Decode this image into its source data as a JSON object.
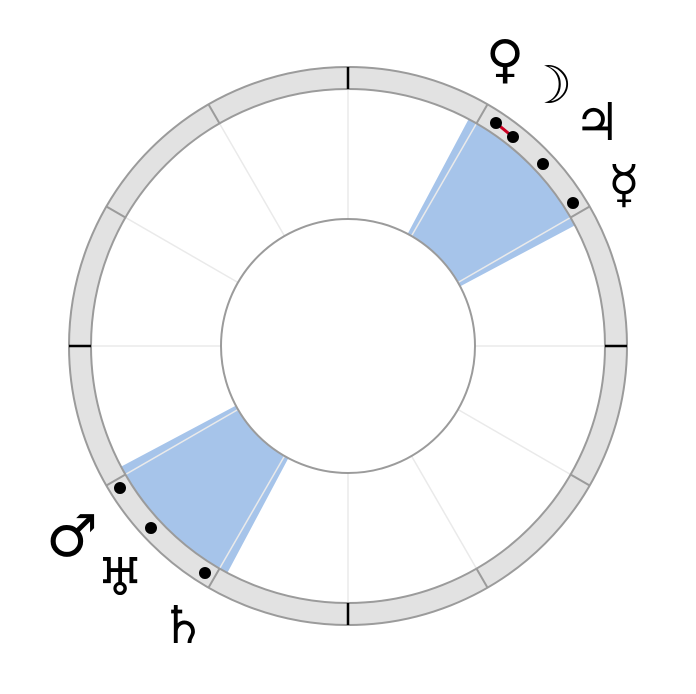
{
  "chart": {
    "colors": {
      "background": "#ffffff",
      "ring_fill": "#e2e2e2",
      "ring_stroke": "#9b9b9b",
      "inner_circle_stroke": "#9b9b9b",
      "division_line": "#eaeaea",
      "cardinal_tick": "#000000",
      "highlight_sector": "#a6c4ea",
      "planet_dot": "#000000",
      "aspect_line": "#cc0022",
      "glyph": "#000000"
    },
    "ring_divisions_count": 12,
    "cardinal_directions": [
      "top",
      "right",
      "bottom",
      "left"
    ],
    "highlighted_sectors": [
      {
        "id": "upper-right",
        "direction": "upper-right"
      },
      {
        "id": "lower-left",
        "direction": "lower-left"
      }
    ],
    "planets": [
      {
        "name": "venus",
        "glyph": "♀"
      },
      {
        "name": "moon",
        "glyph": "☽"
      },
      {
        "name": "jupiter",
        "glyph": "♃"
      },
      {
        "name": "mercury",
        "glyph": "☿"
      },
      {
        "name": "mars",
        "glyph": "♂"
      },
      {
        "name": "uranus",
        "glyph": "♅"
      },
      {
        "name": "saturn",
        "glyph": "♄"
      }
    ],
    "aspect_lines": [
      {
        "from": "venus",
        "to": "moon"
      }
    ]
  }
}
